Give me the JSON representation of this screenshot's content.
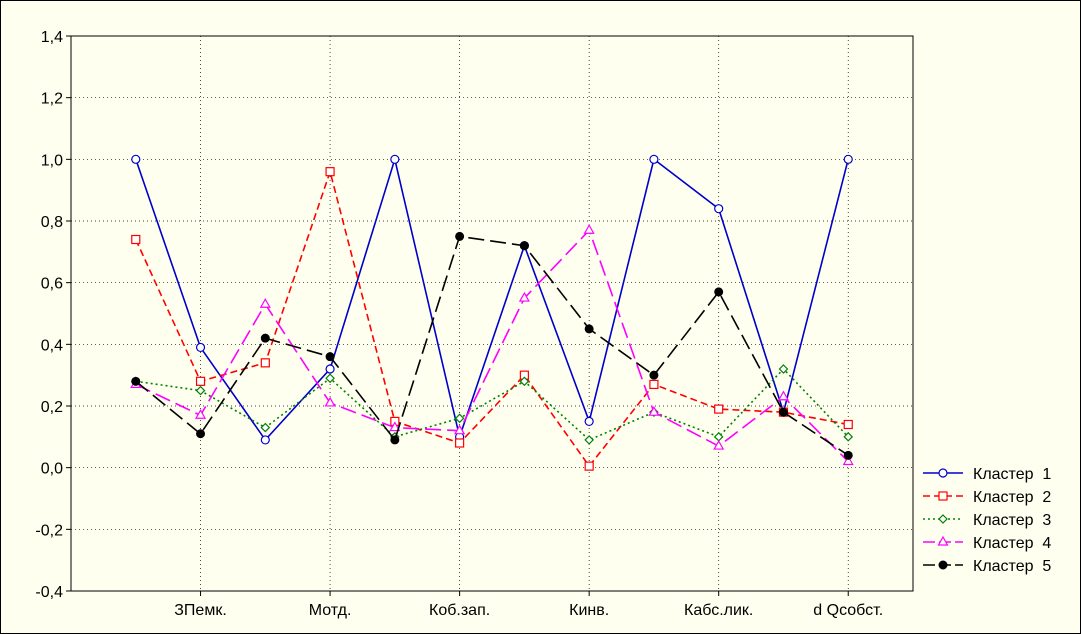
{
  "chart_data": {
    "type": "line",
    "title": "",
    "xlabel": "",
    "ylabel": "",
    "ylim": [
      -0.4,
      1.4
    ],
    "yticks": [
      -0.4,
      -0.2,
      0.0,
      0.2,
      0.4,
      0.6,
      0.8,
      1.0,
      1.2,
      1.4
    ],
    "ytick_labels": [
      "-0,4",
      "-0,2",
      "0,0",
      "0,2",
      "0,4",
      "0,6",
      "0,8",
      "1,0",
      "1,2",
      "1,4"
    ],
    "x": [
      1,
      2,
      3,
      4,
      5,
      6,
      7,
      8,
      9,
      10,
      11,
      12
    ],
    "xlim": [
      0,
      13
    ],
    "xtick_labels": [
      {
        "x": 2,
        "label": "ЗПемк."
      },
      {
        "x": 4,
        "label": "Мотд."
      },
      {
        "x": 6,
        "label": "Коб.зап."
      },
      {
        "x": 8,
        "label": "Кинв."
      },
      {
        "x": 10,
        "label": "Кабс.лик."
      },
      {
        "x": 12,
        "label": "d Qсобст."
      }
    ],
    "grid": true,
    "legend_position": "right",
    "series": [
      {
        "name": "Кластер  1",
        "color": "#0000cc",
        "marker": "circle-open",
        "dash": "solid",
        "values": [
          1.0,
          0.39,
          0.09,
          0.32,
          1.0,
          0.1,
          0.72,
          0.15,
          1.0,
          0.84,
          0.18,
          1.0
        ]
      },
      {
        "name": "Кластер  2",
        "color": "#ff0000",
        "marker": "square-open",
        "dash": "dashed",
        "values": [
          0.74,
          0.28,
          0.34,
          0.96,
          0.15,
          0.08,
          0.3,
          0.005,
          0.27,
          0.19,
          0.18,
          0.14
        ]
      },
      {
        "name": "Кластер  3",
        "color": "#008000",
        "marker": "diamond-open",
        "dash": "dotted",
        "values": [
          0.28,
          0.25,
          0.13,
          0.29,
          0.1,
          0.16,
          0.28,
          0.09,
          0.18,
          0.1,
          0.32,
          0.1
        ]
      },
      {
        "name": "Кластер  4",
        "color": "#ff00ff",
        "marker": "triangle-open",
        "dash": "longdash",
        "values": [
          0.27,
          0.17,
          0.53,
          0.21,
          0.13,
          0.12,
          0.55,
          0.77,
          0.18,
          0.07,
          0.23,
          0.02
        ]
      },
      {
        "name": "Кластер  5",
        "color": "#000000",
        "marker": "circle-filled",
        "dash": "longdash",
        "values": [
          0.28,
          0.11,
          0.42,
          0.36,
          0.09,
          0.75,
          0.72,
          0.45,
          0.3,
          0.57,
          0.18,
          0.04
        ]
      }
    ]
  }
}
